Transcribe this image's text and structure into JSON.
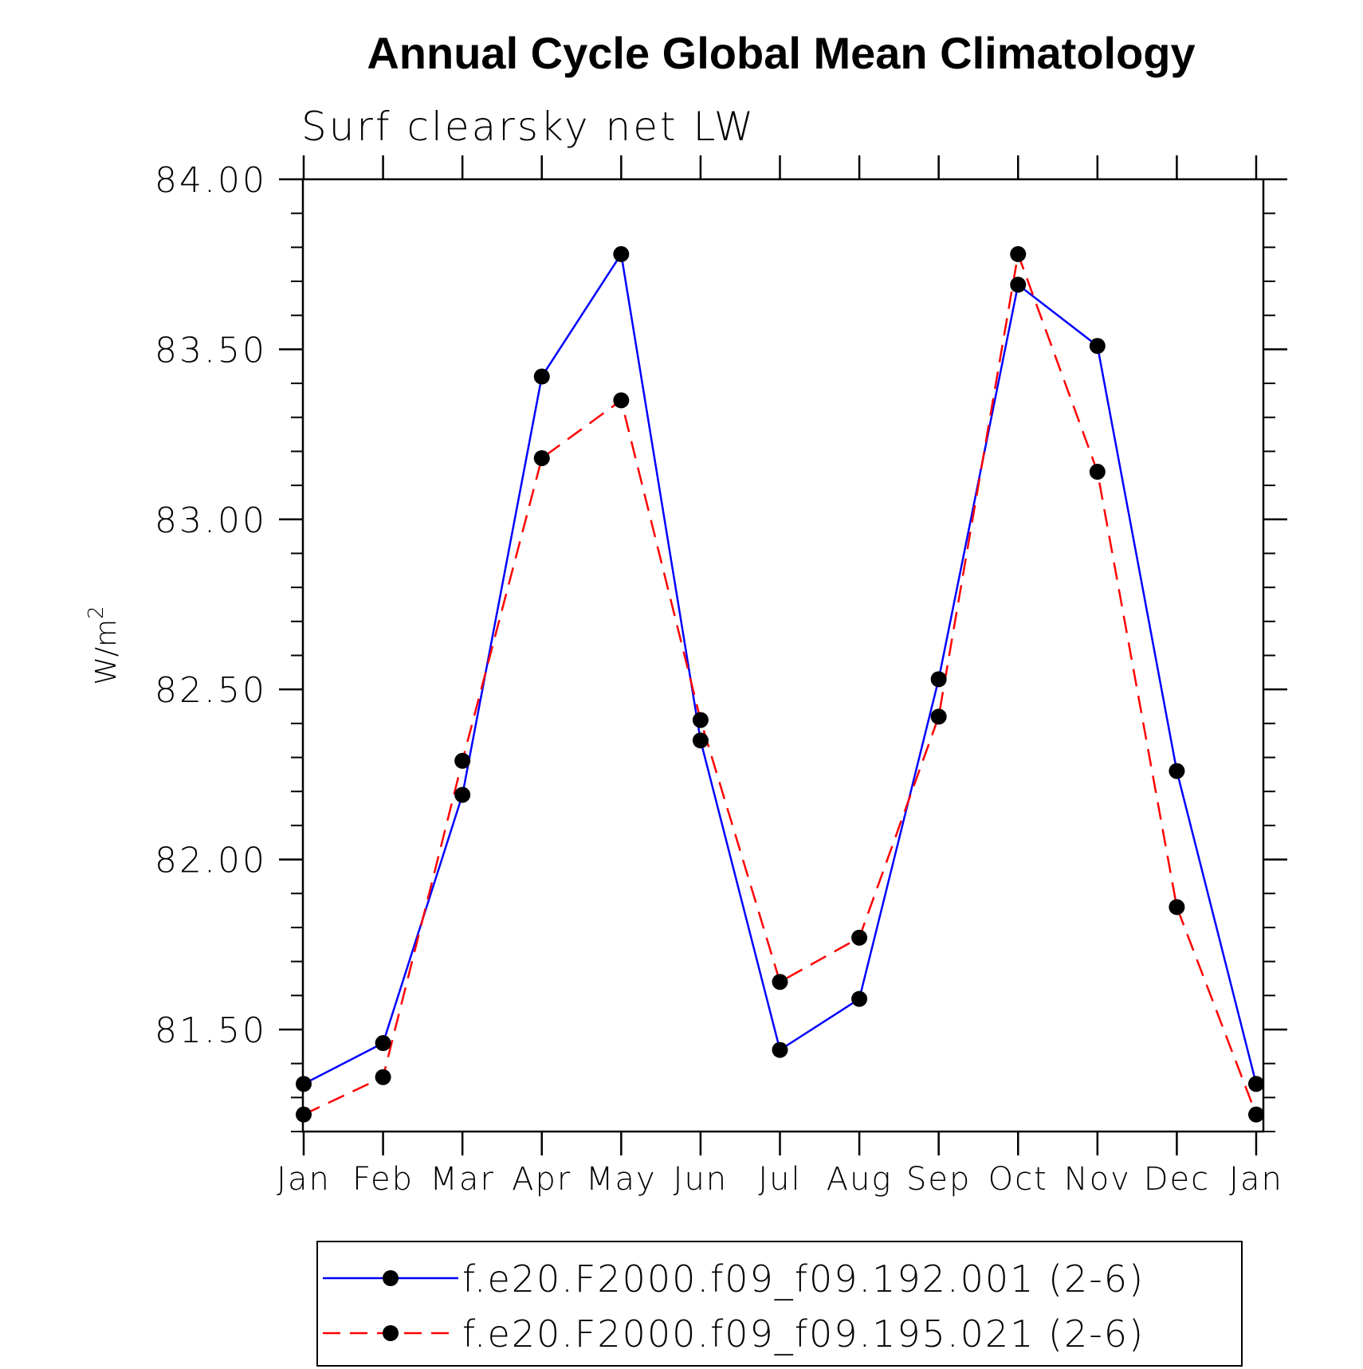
{
  "chart_data": {
    "type": "line",
    "title": "Annual Cycle Global Mean Climatology",
    "subtitle": "Surf clearsky net LW",
    "ylabel": "W/m",
    "ylabel_superscript": "2",
    "xlabel": "",
    "categories": [
      "Jan",
      "Feb",
      "Mar",
      "Apr",
      "May",
      "Jun",
      "Jul",
      "Aug",
      "Sep",
      "Oct",
      "Nov",
      "Dec",
      "Jan"
    ],
    "ylim": [
      81.2,
      84.0
    ],
    "yticks": [
      81.5,
      82.0,
      82.5,
      83.0,
      83.5,
      84.0
    ],
    "ytick_labels": [
      "81.50",
      "82.00",
      "82.50",
      "83.00",
      "83.50",
      "84.00"
    ],
    "series": [
      {
        "name": "f.e20.F2000.f09_f09.192.001 (2-6)",
        "color": "#0000ff",
        "dash": "solid",
        "values": [
          81.34,
          81.46,
          82.19,
          83.42,
          83.78,
          82.35,
          81.44,
          81.59,
          82.53,
          83.69,
          83.51,
          82.26,
          81.34
        ]
      },
      {
        "name": "f.e20.F2000.f09_f09.195.021 (2-6)",
        "color": "#ff0000",
        "dash": "dashed",
        "values": [
          81.25,
          81.36,
          82.29,
          83.18,
          83.35,
          82.41,
          81.64,
          81.77,
          82.42,
          83.78,
          83.14,
          81.86,
          81.25
        ]
      }
    ],
    "grid": false,
    "legend_position": "bottom-center"
  }
}
